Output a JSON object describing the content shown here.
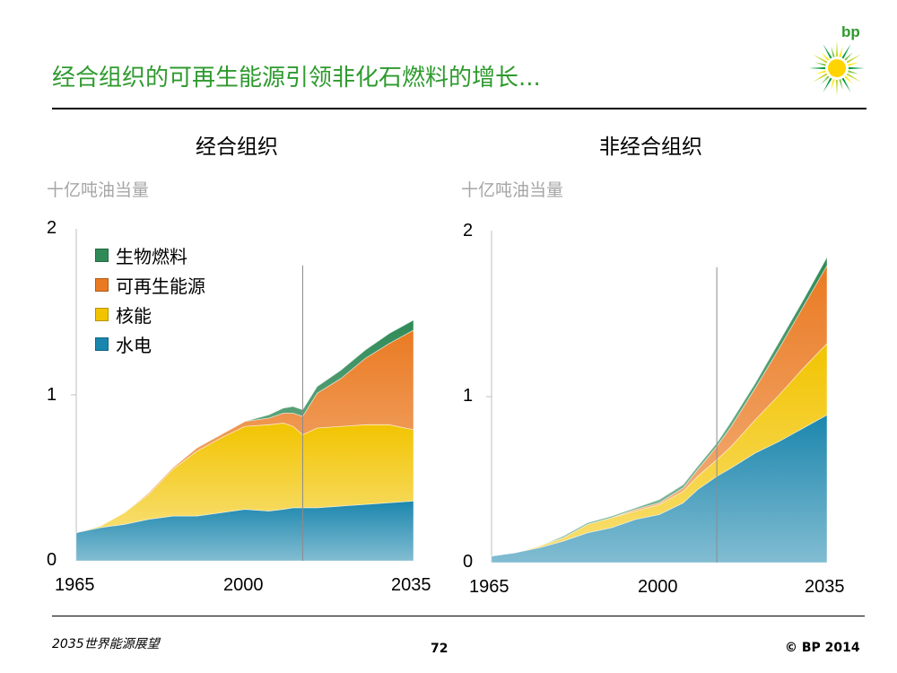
{
  "header": {
    "title": "经合组织的可再生能源引领非化石燃料的增长...",
    "logo_text": "bp"
  },
  "colors": {
    "hydro": "#1b86ad",
    "nuclear": "#f2c400",
    "renewables": "#ea7a22",
    "biofuels": "#2f8a57",
    "title_green": "#2e9a2e"
  },
  "legend": [
    {
      "label": "生物燃料",
      "color": "#2f8a57"
    },
    {
      "label": "可再生能源",
      "color": "#ea7a22"
    },
    {
      "label": "核能",
      "color": "#f2c400"
    },
    {
      "label": "水电",
      "color": "#1b86ad"
    }
  ],
  "chart_data": [
    {
      "type": "area",
      "title": "经合组织",
      "ylabel": "十亿吨油当量",
      "x_ticks": [
        "1965",
        "2000",
        "2035"
      ],
      "y_ticks": [
        "0",
        "1",
        "2"
      ],
      "xlim": [
        1965,
        2035
      ],
      "ylim": [
        0,
        2
      ],
      "stacked": true,
      "projection_start": 2012,
      "x": [
        1965,
        1970,
        1975,
        1980,
        1985,
        1990,
        1995,
        2000,
        2005,
        2008,
        2010,
        2012,
        2015,
        2020,
        2025,
        2030,
        2035
      ],
      "series": [
        {
          "name": "水电",
          "values": [
            0.17,
            0.2,
            0.22,
            0.25,
            0.27,
            0.27,
            0.29,
            0.31,
            0.3,
            0.31,
            0.32,
            0.32,
            0.32,
            0.33,
            0.34,
            0.35,
            0.36
          ]
        },
        {
          "name": "核能",
          "values": [
            0.0,
            0.01,
            0.07,
            0.15,
            0.28,
            0.39,
            0.45,
            0.5,
            0.52,
            0.52,
            0.49,
            0.44,
            0.48,
            0.48,
            0.48,
            0.47,
            0.43
          ]
        },
        {
          "name": "可再生能源",
          "values": [
            0.0,
            0.0,
            0.0,
            0.01,
            0.01,
            0.02,
            0.02,
            0.03,
            0.04,
            0.06,
            0.08,
            0.11,
            0.21,
            0.29,
            0.4,
            0.49,
            0.6
          ]
        },
        {
          "name": "生物燃料",
          "values": [
            0.0,
            0.0,
            0.0,
            0.0,
            0.0,
            0.0,
            0.0,
            0.0,
            0.02,
            0.03,
            0.04,
            0.04,
            0.04,
            0.05,
            0.05,
            0.06,
            0.06
          ]
        }
      ]
    },
    {
      "type": "area",
      "title": "非经合组织",
      "ylabel": "十亿吨油当量",
      "x_ticks": [
        "1965",
        "2000",
        "2035"
      ],
      "y_ticks": [
        "0",
        "1",
        "2"
      ],
      "xlim": [
        1965,
        2035
      ],
      "ylim": [
        0,
        2
      ],
      "stacked": true,
      "projection_start": 2012,
      "x": [
        1965,
        1970,
        1975,
        1980,
        1985,
        1990,
        1995,
        2000,
        2005,
        2008,
        2010,
        2012,
        2015,
        2020,
        2025,
        2030,
        2035
      ],
      "series": [
        {
          "name": "水电",
          "values": [
            0.04,
            0.06,
            0.09,
            0.13,
            0.18,
            0.21,
            0.26,
            0.29,
            0.36,
            0.44,
            0.48,
            0.52,
            0.57,
            0.66,
            0.73,
            0.81,
            0.89
          ]
        },
        {
          "name": "核能",
          "values": [
            0.0,
            0.0,
            0.01,
            0.02,
            0.05,
            0.06,
            0.05,
            0.06,
            0.07,
            0.08,
            0.09,
            0.1,
            0.13,
            0.2,
            0.28,
            0.36,
            0.43
          ]
        },
        {
          "name": "可再生能源",
          "values": [
            0.0,
            0.0,
            0.0,
            0.0,
            0.0,
            0.0,
            0.01,
            0.01,
            0.02,
            0.04,
            0.06,
            0.08,
            0.12,
            0.19,
            0.28,
            0.37,
            0.47
          ]
        },
        {
          "name": "生物燃料",
          "values": [
            0.0,
            0.0,
            0.0,
            0.01,
            0.01,
            0.01,
            0.01,
            0.02,
            0.02,
            0.02,
            0.02,
            0.02,
            0.03,
            0.03,
            0.04,
            0.04,
            0.05
          ]
        }
      ]
    }
  ],
  "footer": {
    "publication": "2035世界能源展望",
    "page_number": "72",
    "copyright": "© BP 2014"
  }
}
